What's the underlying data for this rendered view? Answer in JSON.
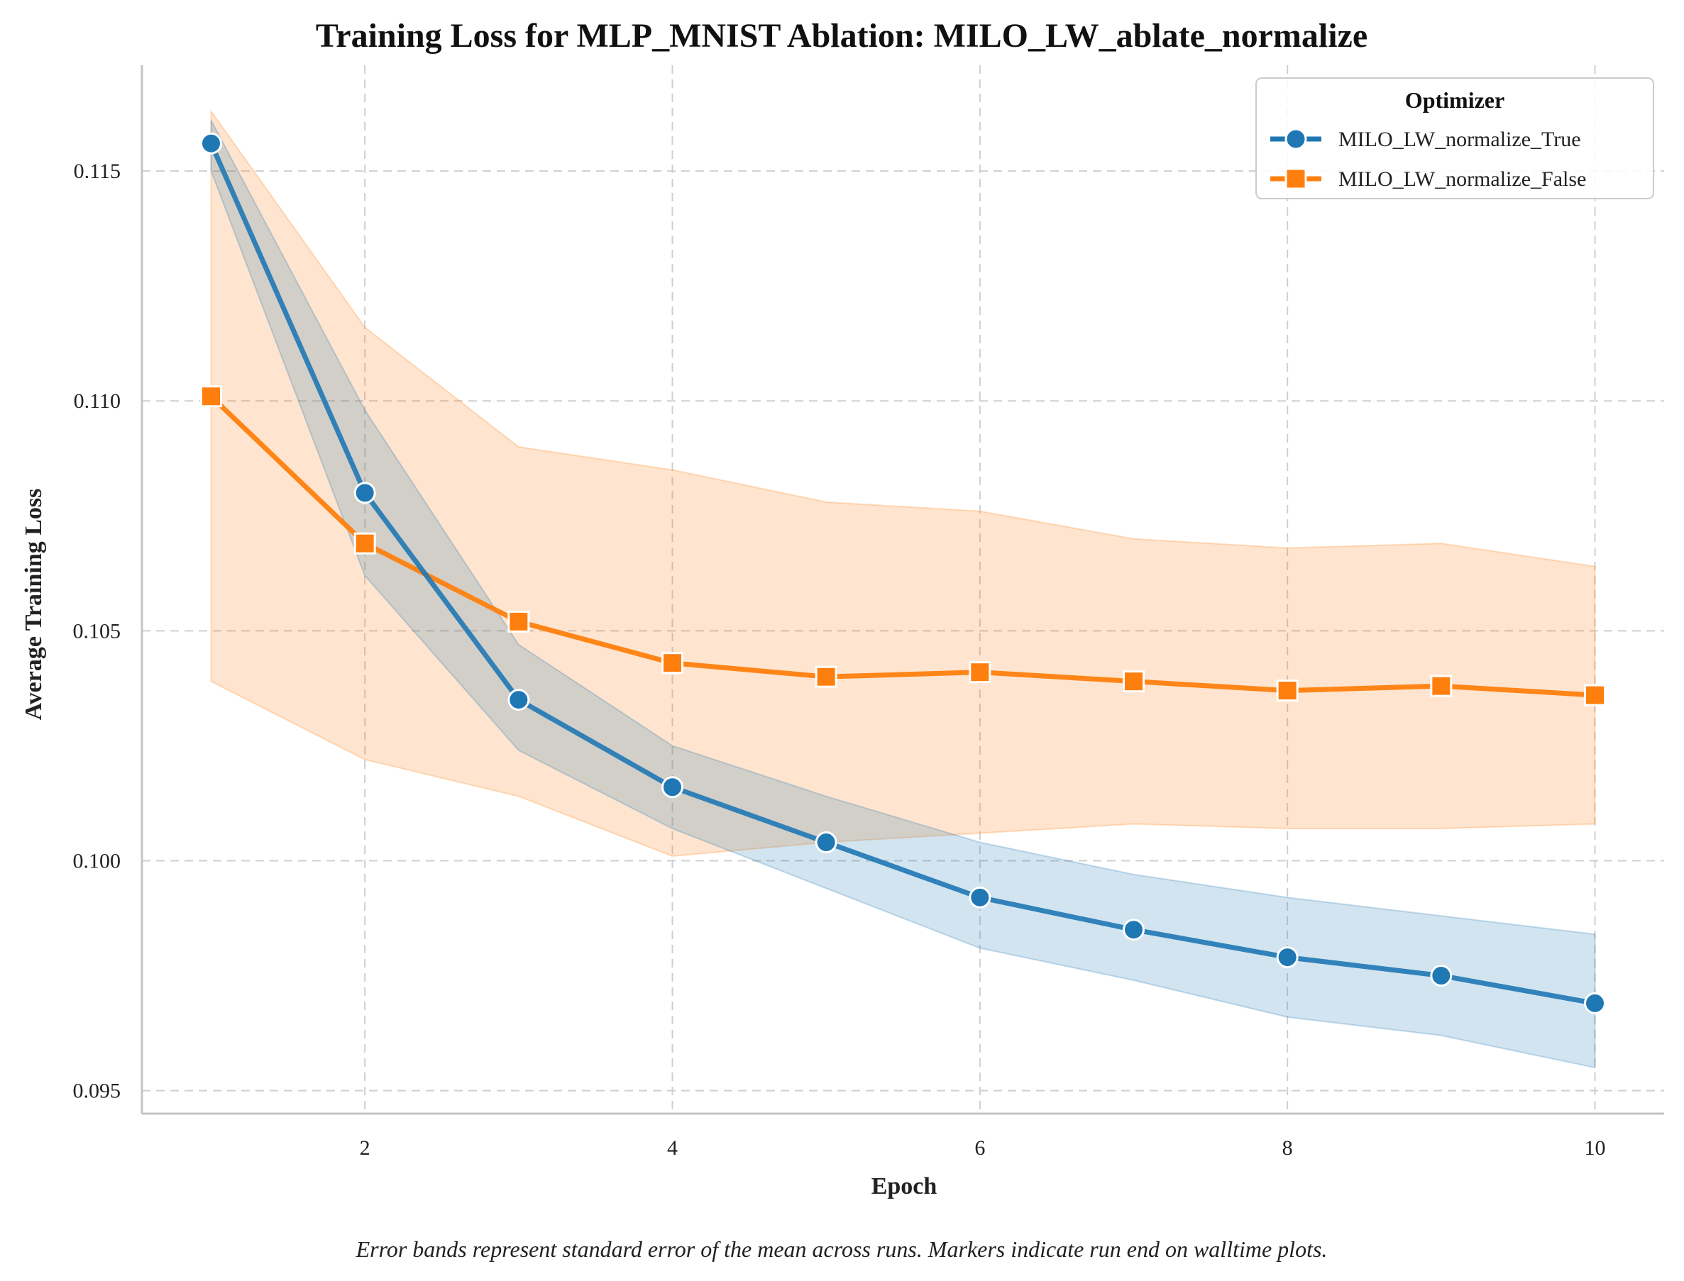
{
  "chart_data": {
    "type": "line",
    "title": "Training Loss for MLP_MNIST Ablation: MILO_LW_ablate_normalize",
    "xlabel": "Epoch",
    "ylabel": "Average Training Loss",
    "xlim": [
      0.55,
      10.45
    ],
    "ylim": [
      0.0945,
      0.1173
    ],
    "xticks": [
      2,
      4,
      6,
      8,
      10
    ],
    "yticks": [
      0.095,
      0.1,
      0.105,
      0.11,
      0.115
    ],
    "ytick_labels": [
      "0.095",
      "0.100",
      "0.105",
      "0.110",
      "0.115"
    ],
    "grid": true,
    "legend": {
      "title": "Optimizer",
      "placement": "top-right"
    },
    "caption": "Error bands represent standard error of the mean across runs. Markers indicate run end on walltime plots.",
    "series": [
      {
        "name": "MILO_LW_normalize_True",
        "color": "#1f77b4",
        "marker": "circle",
        "x": [
          1,
          2,
          3,
          4,
          5,
          6,
          7,
          8,
          9,
          10
        ],
        "y": [
          0.1156,
          0.108,
          0.1035,
          0.1016,
          0.1004,
          0.0992,
          0.0985,
          0.0979,
          0.0975,
          0.0969
        ],
        "lower": [
          0.115,
          0.1062,
          0.1024,
          0.1007,
          0.0994,
          0.0981,
          0.0974,
          0.0966,
          0.0962,
          0.0955
        ],
        "upper": [
          0.1161,
          0.1098,
          0.1047,
          0.1025,
          0.1014,
          0.1004,
          0.0997,
          0.0992,
          0.0988,
          0.0984
        ]
      },
      {
        "name": "MILO_LW_normalize_False",
        "color": "#ff7f0e",
        "marker": "square",
        "x": [
          1,
          2,
          3,
          4,
          5,
          6,
          7,
          8,
          9,
          10
        ],
        "y": [
          0.1101,
          0.1069,
          0.1052,
          0.1043,
          0.104,
          0.1041,
          0.1039,
          0.1037,
          0.1038,
          0.1036
        ],
        "lower": [
          0.1039,
          0.1022,
          0.1014,
          0.1001,
          0.1004,
          0.1006,
          0.1008,
          0.1007,
          0.1007,
          0.1008
        ],
        "upper": [
          0.1163,
          0.1116,
          0.109,
          0.1085,
          0.1078,
          0.1076,
          0.107,
          0.1068,
          0.1069,
          0.1064
        ]
      }
    ]
  }
}
